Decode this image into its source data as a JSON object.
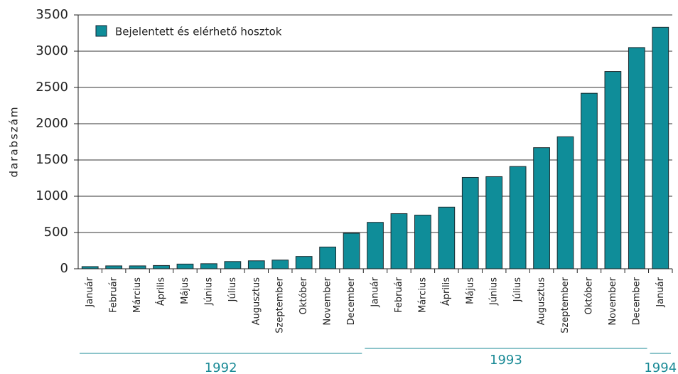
{
  "chart_data": {
    "type": "bar",
    "y_label": "darabszám",
    "legend": "Bejelentett és elérhető hosztok",
    "legend_position": "top-left",
    "color": "#0f8d99",
    "categories": [
      "Január",
      "Február",
      "Március",
      "Április",
      "Május",
      "Június",
      "Július",
      "Augusztus",
      "Szeptember",
      "Október",
      "November",
      "December",
      "Január",
      "Február",
      "Március",
      "Április",
      "Május",
      "Június",
      "Július",
      "Augusztus",
      "Szeptember",
      "Október",
      "November",
      "December",
      "Január"
    ],
    "values": [
      30,
      40,
      40,
      45,
      65,
      70,
      100,
      110,
      120,
      170,
      300,
      490,
      640,
      760,
      740,
      850,
      1260,
      1270,
      1410,
      1670,
      1820,
      2420,
      2720,
      3050,
      3330
    ],
    "groups": [
      {
        "label": "1992",
        "count": 12
      },
      {
        "label": "1993",
        "count": 12
      },
      {
        "label": "1994",
        "count": 1
      }
    ],
    "ylim": [
      0,
      3500
    ],
    "yticks": [
      0,
      500,
      1000,
      1500,
      2000,
      2500,
      3000,
      3500
    ],
    "grid": true
  }
}
